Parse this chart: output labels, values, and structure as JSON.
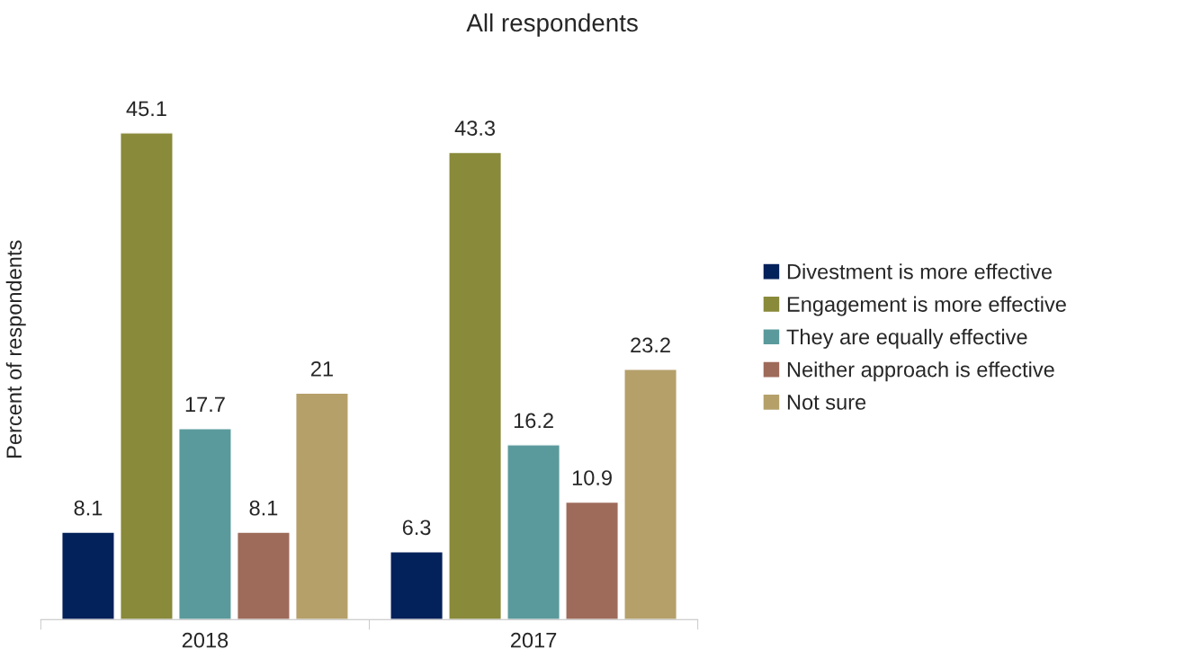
{
  "chart_data": {
    "type": "bar",
    "title": "All respondents",
    "ylabel": "Percent of respondents",
    "categories": [
      "2018",
      "2017"
    ],
    "series": [
      {
        "name": "Divestment is more effective",
        "color": "#03215a",
        "values": [
          8.1,
          6.3
        ]
      },
      {
        "name": "Engagement is more effective",
        "color": "#898a3a",
        "values": [
          45.1,
          43.3
        ]
      },
      {
        "name": "They are equally effective",
        "color": "#5b9a9c",
        "values": [
          17.7,
          16.2
        ]
      },
      {
        "name": "Neither approach is effective",
        "color": "#9e6b5a",
        "values": [
          8.1,
          10.9
        ]
      },
      {
        "name": "Not sure",
        "color": "#b5a06a",
        "values": [
          21,
          23.2
        ]
      }
    ],
    "data_labels": true,
    "legend": "right",
    "grid": false,
    "tick_labels": "x"
  }
}
